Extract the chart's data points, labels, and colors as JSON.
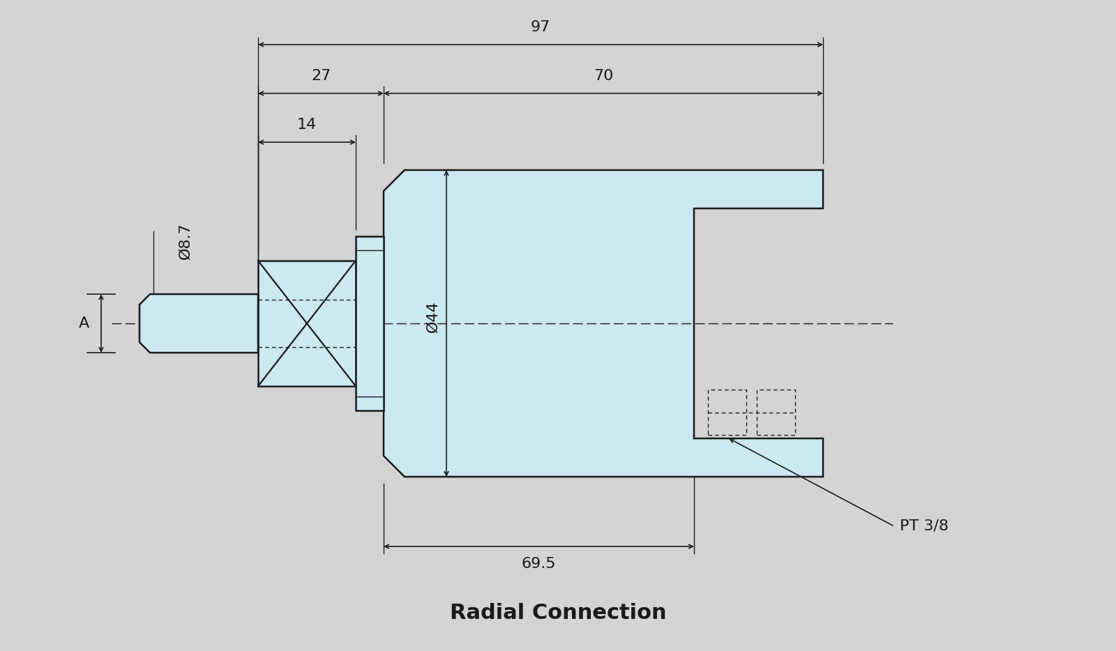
{
  "bg_color": "#d4d4d4",
  "part_fill": "#cce8f0",
  "part_edge": "#1a1a1a",
  "dim_color": "#1a1a1a",
  "title": "Radial Connection",
  "title_fontsize": 22,
  "dim_fontsize": 16,
  "dim_97": "97",
  "dim_27": "27",
  "dim_70": "70",
  "dim_14": "14",
  "dim_d87": "Ø8.7",
  "dim_A": "A",
  "dim_d44": "Ø44",
  "dim_695": "69.5",
  "dim_PT": "PT 3/8"
}
